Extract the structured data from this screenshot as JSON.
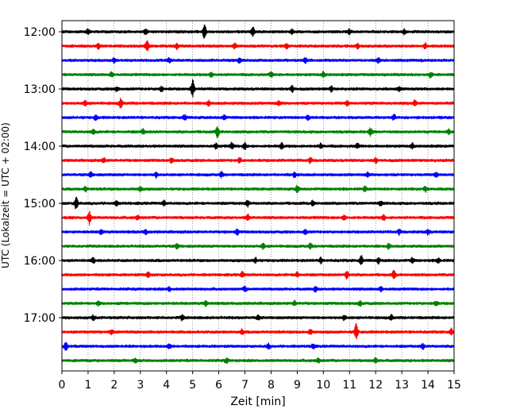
{
  "chart_data": {
    "type": "line",
    "title": "",
    "xlabel": "Zeit  [min]",
    "ylabel": "UTC (Lokalzeit = UTC + 02:00)",
    "xlim": [
      0,
      15
    ],
    "x_ticks": [
      "0",
      "1",
      "2",
      "3",
      "4",
      "5",
      "6",
      "7",
      "8",
      "9",
      "10",
      "11",
      "12",
      "13",
      "14",
      "15"
    ],
    "y_ticks": [
      "12:00",
      "13:00",
      "14:00",
      "15:00",
      "16:00",
      "17:00"
    ],
    "grid": "vertical dotted",
    "colors": [
      "#000000",
      "#ff0000",
      "#0000ff",
      "#008000"
    ],
    "traces": [
      {
        "start": "12:00",
        "color": "#000000",
        "events": [
          [
            5.45,
            10
          ],
          [
            7.3,
            6
          ],
          [
            1.0,
            3
          ],
          [
            3.2,
            3
          ],
          [
            8.8,
            3
          ],
          [
            11.0,
            3
          ],
          [
            13.1,
            3
          ]
        ]
      },
      {
        "start": "12:15",
        "color": "#ff0000",
        "events": [
          [
            3.25,
            7
          ],
          [
            1.4,
            3
          ],
          [
            4.4,
            3
          ],
          [
            6.6,
            3
          ],
          [
            8.6,
            3
          ],
          [
            11.3,
            3
          ],
          [
            13.9,
            3
          ]
        ]
      },
      {
        "start": "12:30",
        "color": "#0000ff",
        "events": [
          [
            2.0,
            3
          ],
          [
            4.1,
            3
          ],
          [
            6.8,
            3
          ],
          [
            9.3,
            3
          ],
          [
            12.1,
            3
          ]
        ]
      },
      {
        "start": "12:45",
        "color": "#008000",
        "events": [
          [
            1.9,
            3
          ],
          [
            5.7,
            3
          ],
          [
            8.0,
            3
          ],
          [
            10.0,
            3
          ],
          [
            14.1,
            3
          ]
        ]
      },
      {
        "start": "13:00",
        "color": "#000000",
        "events": [
          [
            5.0,
            11
          ],
          [
            2.1,
            3
          ],
          [
            8.8,
            4
          ],
          [
            3.8,
            3
          ],
          [
            10.3,
            3
          ],
          [
            12.9,
            3
          ]
        ]
      },
      {
        "start": "13:15",
        "color": "#ff0000",
        "events": [
          [
            2.25,
            6
          ],
          [
            0.9,
            3
          ],
          [
            5.6,
            3
          ],
          [
            8.3,
            3
          ],
          [
            10.9,
            3
          ],
          [
            13.5,
            3
          ]
        ]
      },
      {
        "start": "13:30",
        "color": "#0000ff",
        "events": [
          [
            4.7,
            4
          ],
          [
            1.3,
            3
          ],
          [
            6.2,
            3
          ],
          [
            9.4,
            3
          ],
          [
            12.7,
            3
          ]
        ]
      },
      {
        "start": "13:45",
        "color": "#008000",
        "events": [
          [
            5.95,
            7
          ],
          [
            1.2,
            3
          ],
          [
            11.8,
            5
          ],
          [
            3.1,
            3
          ],
          [
            14.8,
            3
          ]
        ]
      },
      {
        "start": "14:00",
        "color": "#000000",
        "events": [
          [
            6.5,
            4
          ],
          [
            7.0,
            4
          ],
          [
            8.4,
            4
          ],
          [
            9.9,
            3
          ],
          [
            11.3,
            3
          ],
          [
            13.4,
            3
          ],
          [
            5.9,
            3
          ]
        ]
      },
      {
        "start": "14:15",
        "color": "#ff0000",
        "events": [
          [
            1.6,
            3
          ],
          [
            4.2,
            3
          ],
          [
            6.8,
            3
          ],
          [
            9.5,
            3
          ],
          [
            12.0,
            3
          ]
        ]
      },
      {
        "start": "14:30",
        "color": "#0000ff",
        "events": [
          [
            1.1,
            3
          ],
          [
            3.6,
            3
          ],
          [
            6.1,
            3
          ],
          [
            8.9,
            3
          ],
          [
            11.7,
            3
          ],
          [
            14.3,
            3
          ]
        ]
      },
      {
        "start": "14:45",
        "color": "#008000",
        "events": [
          [
            0.9,
            3
          ],
          [
            3.0,
            3
          ],
          [
            9.0,
            4
          ],
          [
            11.6,
            3
          ],
          [
            13.9,
            3
          ]
        ]
      },
      {
        "start": "15:00",
        "color": "#000000",
        "events": [
          [
            0.55,
            8
          ],
          [
            2.1,
            3
          ],
          [
            3.9,
            3
          ],
          [
            7.1,
            4
          ],
          [
            9.6,
            3
          ],
          [
            12.2,
            3
          ]
        ]
      },
      {
        "start": "15:15",
        "color": "#ff0000",
        "events": [
          [
            1.05,
            8
          ],
          [
            2.9,
            3
          ],
          [
            7.1,
            4
          ],
          [
            10.8,
            3
          ],
          [
            12.3,
            3
          ]
        ]
      },
      {
        "start": "15:30",
        "color": "#0000ff",
        "events": [
          [
            1.5,
            3
          ],
          [
            3.2,
            3
          ],
          [
            6.7,
            3
          ],
          [
            9.3,
            3
          ],
          [
            12.9,
            3
          ],
          [
            14.0,
            3
          ]
        ]
      },
      {
        "start": "15:45",
        "color": "#008000",
        "events": [
          [
            4.4,
            3
          ],
          [
            7.7,
            3
          ],
          [
            9.5,
            3
          ],
          [
            12.5,
            3
          ]
        ]
      },
      {
        "start": "16:00",
        "color": "#000000",
        "events": [
          [
            11.45,
            6
          ],
          [
            1.2,
            3
          ],
          [
            7.4,
            3
          ],
          [
            9.9,
            3
          ],
          [
            12.1,
            3
          ],
          [
            13.4,
            3
          ],
          [
            14.4,
            3
          ]
        ]
      },
      {
        "start": "16:15",
        "color": "#ff0000",
        "events": [
          [
            10.9,
            5
          ],
          [
            12.7,
            5
          ],
          [
            3.3,
            3
          ],
          [
            6.9,
            3
          ],
          [
            9.0,
            3
          ]
        ]
      },
      {
        "start": "16:30",
        "color": "#0000ff",
        "events": [
          [
            4.1,
            3
          ],
          [
            7.0,
            3
          ],
          [
            9.7,
            3
          ],
          [
            12.2,
            3
          ]
        ]
      },
      {
        "start": "16:45",
        "color": "#008000",
        "events": [
          [
            1.4,
            3
          ],
          [
            5.5,
            3
          ],
          [
            8.9,
            3
          ],
          [
            11.4,
            3
          ],
          [
            14.3,
            3
          ]
        ]
      },
      {
        "start": "17:00",
        "color": "#000000",
        "events": [
          [
            1.2,
            3
          ],
          [
            4.6,
            3
          ],
          [
            7.5,
            3
          ],
          [
            10.8,
            3
          ],
          [
            12.6,
            3
          ]
        ]
      },
      {
        "start": "17:15",
        "color": "#ff0000",
        "events": [
          [
            11.25,
            11
          ],
          [
            1.9,
            3
          ],
          [
            6.9,
            3
          ],
          [
            9.5,
            3
          ],
          [
            14.9,
            4
          ]
        ]
      },
      {
        "start": "17:30",
        "color": "#0000ff",
        "events": [
          [
            0.15,
            5
          ],
          [
            4.1,
            3
          ],
          [
            7.9,
            3
          ],
          [
            9.6,
            3
          ],
          [
            13.8,
            3
          ]
        ]
      },
      {
        "start": "17:45",
        "color": "#008000",
        "events": [
          [
            2.8,
            3
          ],
          [
            6.3,
            3
          ],
          [
            9.8,
            3
          ],
          [
            12.0,
            3
          ]
        ]
      }
    ]
  }
}
